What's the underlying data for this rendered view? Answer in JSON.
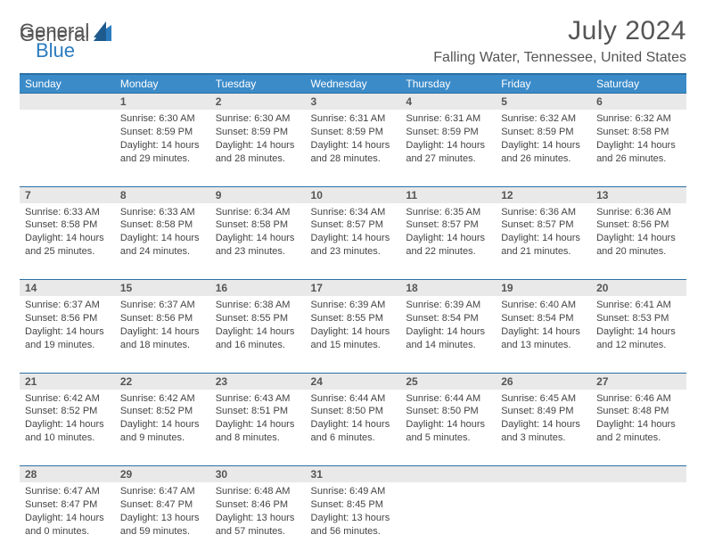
{
  "brand": {
    "part1": "General",
    "part2": "Blue"
  },
  "title": "July 2024",
  "location": "Falling Water, Tennessee, United States",
  "colors": {
    "header_bg": "#3b8bc9",
    "header_border": "#2b6fa3",
    "daynum_bg": "#e9e9e9",
    "text": "#444444",
    "brand_blue": "#2b7bbf"
  },
  "day_headers": [
    "Sunday",
    "Monday",
    "Tuesday",
    "Wednesday",
    "Thursday",
    "Friday",
    "Saturday"
  ],
  "weeks": [
    {
      "nums": [
        "",
        "1",
        "2",
        "3",
        "4",
        "5",
        "6"
      ],
      "cells": [
        null,
        {
          "sr": "Sunrise: 6:30 AM",
          "ss": "Sunset: 8:59 PM",
          "dl": "Daylight: 14 hours and 29 minutes."
        },
        {
          "sr": "Sunrise: 6:30 AM",
          "ss": "Sunset: 8:59 PM",
          "dl": "Daylight: 14 hours and 28 minutes."
        },
        {
          "sr": "Sunrise: 6:31 AM",
          "ss": "Sunset: 8:59 PM",
          "dl": "Daylight: 14 hours and 28 minutes."
        },
        {
          "sr": "Sunrise: 6:31 AM",
          "ss": "Sunset: 8:59 PM",
          "dl": "Daylight: 14 hours and 27 minutes."
        },
        {
          "sr": "Sunrise: 6:32 AM",
          "ss": "Sunset: 8:59 PM",
          "dl": "Daylight: 14 hours and 26 minutes."
        },
        {
          "sr": "Sunrise: 6:32 AM",
          "ss": "Sunset: 8:58 PM",
          "dl": "Daylight: 14 hours and 26 minutes."
        }
      ]
    },
    {
      "nums": [
        "7",
        "8",
        "9",
        "10",
        "11",
        "12",
        "13"
      ],
      "cells": [
        {
          "sr": "Sunrise: 6:33 AM",
          "ss": "Sunset: 8:58 PM",
          "dl": "Daylight: 14 hours and 25 minutes."
        },
        {
          "sr": "Sunrise: 6:33 AM",
          "ss": "Sunset: 8:58 PM",
          "dl": "Daylight: 14 hours and 24 minutes."
        },
        {
          "sr": "Sunrise: 6:34 AM",
          "ss": "Sunset: 8:58 PM",
          "dl": "Daylight: 14 hours and 23 minutes."
        },
        {
          "sr": "Sunrise: 6:34 AM",
          "ss": "Sunset: 8:57 PM",
          "dl": "Daylight: 14 hours and 23 minutes."
        },
        {
          "sr": "Sunrise: 6:35 AM",
          "ss": "Sunset: 8:57 PM",
          "dl": "Daylight: 14 hours and 22 minutes."
        },
        {
          "sr": "Sunrise: 6:36 AM",
          "ss": "Sunset: 8:57 PM",
          "dl": "Daylight: 14 hours and 21 minutes."
        },
        {
          "sr": "Sunrise: 6:36 AM",
          "ss": "Sunset: 8:56 PM",
          "dl": "Daylight: 14 hours and 20 minutes."
        }
      ]
    },
    {
      "nums": [
        "14",
        "15",
        "16",
        "17",
        "18",
        "19",
        "20"
      ],
      "cells": [
        {
          "sr": "Sunrise: 6:37 AM",
          "ss": "Sunset: 8:56 PM",
          "dl": "Daylight: 14 hours and 19 minutes."
        },
        {
          "sr": "Sunrise: 6:37 AM",
          "ss": "Sunset: 8:56 PM",
          "dl": "Daylight: 14 hours and 18 minutes."
        },
        {
          "sr": "Sunrise: 6:38 AM",
          "ss": "Sunset: 8:55 PM",
          "dl": "Daylight: 14 hours and 16 minutes."
        },
        {
          "sr": "Sunrise: 6:39 AM",
          "ss": "Sunset: 8:55 PM",
          "dl": "Daylight: 14 hours and 15 minutes."
        },
        {
          "sr": "Sunrise: 6:39 AM",
          "ss": "Sunset: 8:54 PM",
          "dl": "Daylight: 14 hours and 14 minutes."
        },
        {
          "sr": "Sunrise: 6:40 AM",
          "ss": "Sunset: 8:54 PM",
          "dl": "Daylight: 14 hours and 13 minutes."
        },
        {
          "sr": "Sunrise: 6:41 AM",
          "ss": "Sunset: 8:53 PM",
          "dl": "Daylight: 14 hours and 12 minutes."
        }
      ]
    },
    {
      "nums": [
        "21",
        "22",
        "23",
        "24",
        "25",
        "26",
        "27"
      ],
      "cells": [
        {
          "sr": "Sunrise: 6:42 AM",
          "ss": "Sunset: 8:52 PM",
          "dl": "Daylight: 14 hours and 10 minutes."
        },
        {
          "sr": "Sunrise: 6:42 AM",
          "ss": "Sunset: 8:52 PM",
          "dl": "Daylight: 14 hours and 9 minutes."
        },
        {
          "sr": "Sunrise: 6:43 AM",
          "ss": "Sunset: 8:51 PM",
          "dl": "Daylight: 14 hours and 8 minutes."
        },
        {
          "sr": "Sunrise: 6:44 AM",
          "ss": "Sunset: 8:50 PM",
          "dl": "Daylight: 14 hours and 6 minutes."
        },
        {
          "sr": "Sunrise: 6:44 AM",
          "ss": "Sunset: 8:50 PM",
          "dl": "Daylight: 14 hours and 5 minutes."
        },
        {
          "sr": "Sunrise: 6:45 AM",
          "ss": "Sunset: 8:49 PM",
          "dl": "Daylight: 14 hours and 3 minutes."
        },
        {
          "sr": "Sunrise: 6:46 AM",
          "ss": "Sunset: 8:48 PM",
          "dl": "Daylight: 14 hours and 2 minutes."
        }
      ]
    },
    {
      "nums": [
        "28",
        "29",
        "30",
        "31",
        "",
        "",
        ""
      ],
      "cells": [
        {
          "sr": "Sunrise: 6:47 AM",
          "ss": "Sunset: 8:47 PM",
          "dl": "Daylight: 14 hours and 0 minutes."
        },
        {
          "sr": "Sunrise: 6:47 AM",
          "ss": "Sunset: 8:47 PM",
          "dl": "Daylight: 13 hours and 59 minutes."
        },
        {
          "sr": "Sunrise: 6:48 AM",
          "ss": "Sunset: 8:46 PM",
          "dl": "Daylight: 13 hours and 57 minutes."
        },
        {
          "sr": "Sunrise: 6:49 AM",
          "ss": "Sunset: 8:45 PM",
          "dl": "Daylight: 13 hours and 56 minutes."
        },
        null,
        null,
        null
      ]
    }
  ]
}
